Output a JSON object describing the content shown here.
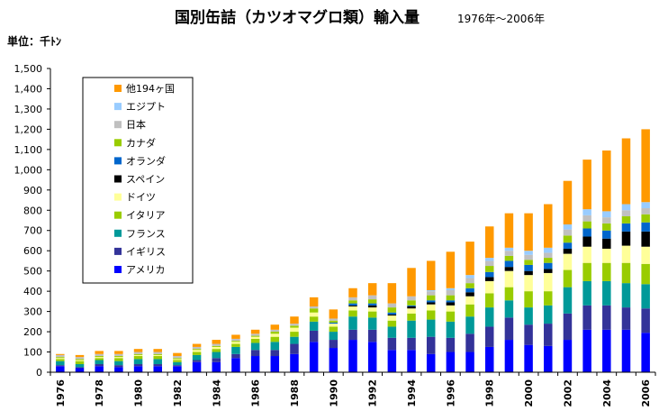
{
  "chart_data": {
    "type": "bar",
    "stacked": true,
    "title": "国別缶詰（カツオマグロ類）輸入量",
    "subtitle": "1976年～2006年",
    "unit_label": "単位：千ﾄﾝ",
    "xlabel": "",
    "ylabel": "",
    "ylim": [
      0,
      1500
    ],
    "y_ticks": [
      "0",
      "100",
      "200",
      "300",
      "400",
      "500",
      "600",
      "700",
      "800",
      "900",
      "1,000",
      "1,100",
      "1,200",
      "1,300",
      "1,400",
      "1,500"
    ],
    "x_tick_labels": [
      "1976",
      "1978",
      "1980",
      "1982",
      "1984",
      "1986",
      "1988",
      "1990",
      "1992",
      "1994",
      "1996",
      "1998",
      "2000",
      "2002",
      "2004",
      "2006"
    ],
    "grid": false,
    "legend_position": "top-left",
    "categories": [
      "1976",
      "1977",
      "1978",
      "1979",
      "1980",
      "1981",
      "1982",
      "1983",
      "1984",
      "1985",
      "1986",
      "1987",
      "1988",
      "1989",
      "1990",
      "1991",
      "1992",
      "1993",
      "1994",
      "1995",
      "1996",
      "1997",
      "1998",
      "1999",
      "2000",
      "2001",
      "2002",
      "2003",
      "2004",
      "2005",
      "2006"
    ],
    "series": [
      {
        "name": "アメリカ",
        "color": "#0000ff",
        "values": [
          30,
          20,
          30,
          25,
          30,
          30,
          30,
          50,
          50,
          70,
          80,
          80,
          90,
          150,
          120,
          160,
          150,
          110,
          110,
          90,
          100,
          100,
          125,
          160,
          135,
          130,
          160,
          210,
          210,
          210,
          195
        ]
      },
      {
        "name": "イギリス",
        "color": "#333399",
        "values": [
          5,
          5,
          10,
          10,
          10,
          10,
          5,
          10,
          20,
          20,
          30,
          30,
          50,
          55,
          40,
          50,
          60,
          60,
          60,
          85,
          70,
          90,
          100,
          110,
          100,
          110,
          130,
          120,
          120,
          110,
          120
        ]
      },
      {
        "name": "フランス",
        "color": "#009999",
        "values": [
          20,
          15,
          20,
          20,
          25,
          25,
          15,
          25,
          30,
          35,
          35,
          40,
          35,
          45,
          40,
          65,
          60,
          55,
          85,
          85,
          80,
          85,
          95,
          85,
          85,
          90,
          130,
          120,
          120,
          120,
          120
        ]
      },
      {
        "name": "イタリア",
        "color": "#99cc00",
        "values": [
          10,
          15,
          10,
          15,
          15,
          15,
          10,
          15,
          15,
          15,
          20,
          25,
          25,
          25,
          25,
          30,
          30,
          30,
          35,
          45,
          50,
          60,
          70,
          65,
          80,
          70,
          85,
          90,
          90,
          100,
          100
        ]
      },
      {
        "name": "ドイツ",
        "color": "#ffff99",
        "values": [
          5,
          5,
          5,
          5,
          5,
          5,
          5,
          10,
          10,
          10,
          10,
          15,
          20,
          20,
          15,
          20,
          20,
          25,
          25,
          30,
          30,
          40,
          60,
          80,
          80,
          90,
          80,
          80,
          70,
          85,
          85
        ]
      },
      {
        "name": "スペイン",
        "color": "#000000",
        "values": [
          0,
          0,
          0,
          0,
          0,
          0,
          0,
          0,
          0,
          0,
          0,
          0,
          0,
          0,
          0,
          5,
          10,
          5,
          10,
          10,
          15,
          20,
          20,
          20,
          20,
          20,
          25,
          50,
          50,
          70,
          75
        ]
      },
      {
        "name": "オランダ",
        "color": "#0066cc",
        "values": [
          0,
          0,
          0,
          0,
          0,
          0,
          0,
          0,
          0,
          0,
          0,
          0,
          0,
          0,
          5,
          10,
          10,
          10,
          5,
          10,
          10,
          20,
          25,
          30,
          30,
          30,
          30,
          40,
          40,
          40,
          45
        ]
      },
      {
        "name": "カナダ",
        "color": "#99cc00",
        "values": [
          5,
          5,
          5,
          5,
          5,
          5,
          5,
          5,
          5,
          5,
          5,
          10,
          10,
          20,
          10,
          15,
          20,
          25,
          25,
          25,
          25,
          25,
          30,
          25,
          25,
          25,
          35,
          35,
          35,
          35,
          40
        ]
      },
      {
        "name": "日本",
        "color": "#c0c0c0",
        "values": [
          10,
          10,
          10,
          10,
          10,
          10,
          10,
          10,
          10,
          10,
          10,
          10,
          10,
          10,
          10,
          15,
          20,
          20,
          20,
          20,
          25,
          25,
          25,
          25,
          25,
          25,
          30,
          30,
          30,
          30,
          30
        ]
      },
      {
        "name": "エジプト",
        "color": "#99ccff",
        "values": [
          0,
          0,
          0,
          0,
          0,
          0,
          0,
          0,
          0,
          0,
          0,
          0,
          0,
          0,
          0,
          0,
          0,
          0,
          0,
          5,
          10,
          15,
          15,
          15,
          20,
          25,
          25,
          30,
          30,
          30,
          30
        ]
      },
      {
        "name": "他194ヶ国",
        "color": "#ff9900",
        "values": [
          5,
          10,
          15,
          15,
          15,
          15,
          15,
          15,
          20,
          20,
          20,
          25,
          35,
          45,
          45,
          45,
          60,
          100,
          140,
          145,
          180,
          165,
          155,
          170,
          185,
          215,
          215,
          245,
          300,
          325,
          360
        ]
      }
    ]
  }
}
